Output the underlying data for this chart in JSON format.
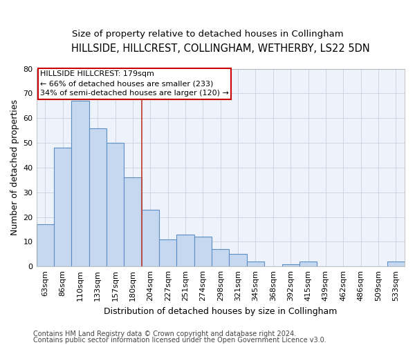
{
  "title1": "HILLSIDE, HILLCREST, COLLINGHAM, WETHERBY, LS22 5DN",
  "title2": "Size of property relative to detached houses in Collingham",
  "xlabel": "Distribution of detached houses by size in Collingham",
  "ylabel": "Number of detached properties",
  "footer1": "Contains HM Land Registry data © Crown copyright and database right 2024.",
  "footer2": "Contains public sector information licensed under the Open Government Licence v3.0.",
  "annotation_title": "HILLSIDE HILLCREST: 179sqm",
  "annotation_line2": "← 66% of detached houses are smaller (233)",
  "annotation_line3": "34% of semi-detached houses are larger (120) →",
  "categories": [
    "63sqm",
    "86sqm",
    "110sqm",
    "133sqm",
    "157sqm",
    "180sqm",
    "204sqm",
    "227sqm",
    "251sqm",
    "274sqm",
    "298sqm",
    "321sqm",
    "345sqm",
    "368sqm",
    "392sqm",
    "415sqm",
    "439sqm",
    "462sqm",
    "486sqm",
    "509sqm",
    "533sqm"
  ],
  "values": [
    17,
    48,
    67,
    56,
    50,
    36,
    23,
    11,
    13,
    12,
    7,
    5,
    2,
    0,
    1,
    2,
    0,
    0,
    0,
    0,
    2
  ],
  "bar_color": "#c5d8f0",
  "bar_edge_color": "#5b8ec4",
  "highlight_index": 5,
  "vline_color": "#c0392b",
  "ylim": [
    0,
    80
  ],
  "yticks": [
    0,
    10,
    20,
    30,
    40,
    50,
    60,
    70,
    80
  ],
  "grid_color": "#c8d0e0",
  "bg_color": "#eef2fa",
  "annotation_box_color": "white",
  "annotation_box_edge": "#cc0000",
  "title1_fontsize": 10.5,
  "title2_fontsize": 9.5,
  "axis_label_fontsize": 9,
  "tick_fontsize": 8,
  "footer_fontsize": 7,
  "ann_fontsize": 8
}
